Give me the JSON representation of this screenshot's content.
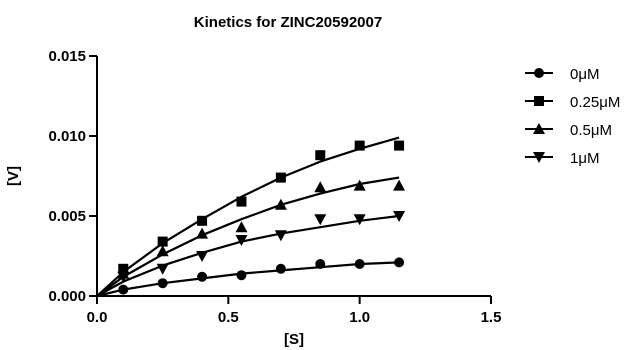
{
  "chart_data": {
    "type": "scatter",
    "title": "Kinetics for ZINC20592007",
    "xlabel": "[S]",
    "ylabel": "[V]",
    "xlim": [
      0.0,
      1.5
    ],
    "ylim": [
      0.0,
      0.015
    ],
    "x_ticks": [
      "0.0",
      "0.5",
      "1.0",
      "1.5"
    ],
    "y_ticks": [
      "0.000",
      "0.005",
      "0.010",
      "0.015"
    ],
    "x_tick_values": [
      0.0,
      0.5,
      1.0,
      1.5
    ],
    "y_tick_values": [
      0.0,
      0.005,
      0.01,
      0.015
    ],
    "legend_position": "right",
    "grid": false,
    "fit_lines": true,
    "x": [
      0.1,
      0.25,
      0.4,
      0.55,
      0.7,
      0.85,
      1.0,
      1.15
    ],
    "series": [
      {
        "name": "0μM",
        "marker": "circle",
        "values": [
          0.0004,
          0.0008,
          0.0012,
          0.0013,
          0.0017,
          0.002,
          0.002,
          0.0021
        ],
        "fit": [
          0.0004,
          0.0008,
          0.0011,
          0.0014,
          0.0016,
          0.0018,
          0.002,
          0.0021
        ]
      },
      {
        "name": "0.25μM",
        "marker": "square",
        "values": [
          0.0017,
          0.0034,
          0.0047,
          0.0059,
          0.0074,
          0.0088,
          0.0094,
          0.0094
        ],
        "fit": [
          0.0015,
          0.0033,
          0.0048,
          0.0062,
          0.0074,
          0.0084,
          0.0092,
          0.0099
        ]
      },
      {
        "name": "0.5μM",
        "marker": "triangle-up",
        "values": [
          0.0014,
          0.0028,
          0.0039,
          0.0043,
          0.0057,
          0.0068,
          0.0069,
          0.0069
        ],
        "fit": [
          0.0012,
          0.0026,
          0.0038,
          0.0048,
          0.0057,
          0.0064,
          0.007,
          0.0074
        ]
      },
      {
        "name": "1μM",
        "marker": "triangle-down",
        "values": [
          0.0012,
          0.0017,
          0.0025,
          0.0035,
          0.0038,
          0.0048,
          0.0048,
          0.005
        ],
        "fit": [
          0.0009,
          0.0019,
          0.0027,
          0.0034,
          0.0039,
          0.0043,
          0.0047,
          0.005
        ]
      }
    ]
  }
}
